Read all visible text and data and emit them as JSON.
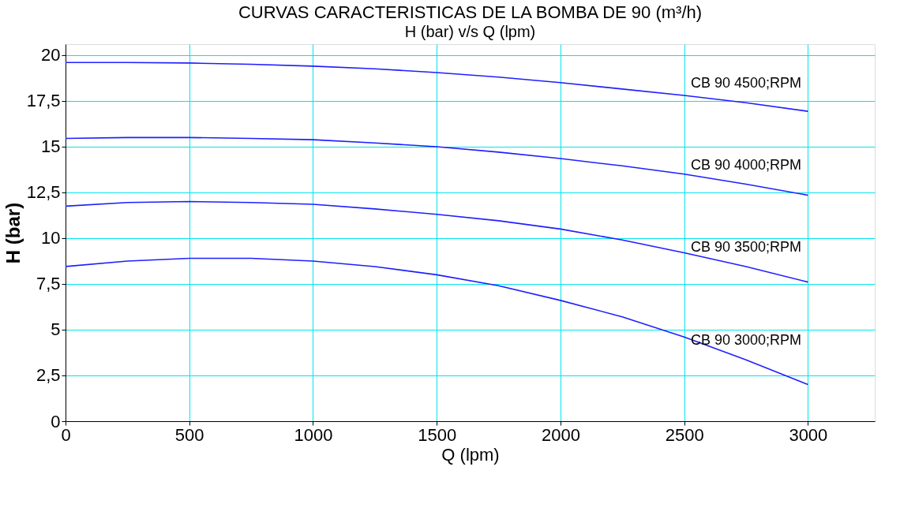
{
  "chart_data": {
    "type": "line",
    "title": "CURVAS CARACTERISTICAS DE LA BOMBA DE 90 (m³/h)",
    "subtitle": "H (bar) v/s Q (lpm)",
    "xlabel": "Q (lpm)",
    "ylabel": "H (bar)",
    "x": [
      0,
      250,
      500,
      750,
      1000,
      1250,
      1500,
      1750,
      2000,
      2250,
      2500,
      2750,
      3000
    ],
    "series": [
      {
        "name": "CB 90 4500;RPM",
        "color": "#1f1fff",
        "values": [
          19.6,
          19.6,
          19.57,
          19.5,
          19.4,
          19.25,
          19.05,
          18.8,
          18.5,
          18.15,
          17.8,
          17.4,
          16.93
        ]
      },
      {
        "name": "CB 90 4000;RPM",
        "color": "#1f1fff",
        "values": [
          15.45,
          15.5,
          15.5,
          15.45,
          15.38,
          15.2,
          15.0,
          14.7,
          14.35,
          13.95,
          13.5,
          12.95,
          12.35
        ]
      },
      {
        "name": "CB 90 3500;RPM",
        "color": "#1f1fff",
        "values": [
          11.75,
          11.95,
          12.0,
          11.95,
          11.85,
          11.6,
          11.3,
          10.95,
          10.5,
          9.9,
          9.2,
          8.45,
          7.6
        ]
      },
      {
        "name": "CB 90 3000;RPM",
        "color": "#1f1fff",
        "values": [
          8.45,
          8.75,
          8.9,
          8.9,
          8.75,
          8.45,
          8.0,
          7.4,
          6.6,
          5.7,
          4.6,
          3.35,
          2.0
        ]
      }
    ],
    "xlim": [
      0,
      3270
    ],
    "xticks": [
      0,
      500,
      1000,
      1500,
      2000,
      2500,
      3000
    ],
    "ylim": [
      0,
      20.6
    ],
    "yticks": [
      0,
      {
        "value": 2.5,
        "label": "2,5"
      },
      5,
      {
        "value": 7.5,
        "label": "7,5"
      },
      10,
      {
        "value": 12.5,
        "label": "12,5"
      },
      15,
      {
        "value": 17.5,
        "label": "17,5"
      },
      20
    ],
    "grid": true,
    "legend": false,
    "marker": "none",
    "line_style": "solid"
  }
}
